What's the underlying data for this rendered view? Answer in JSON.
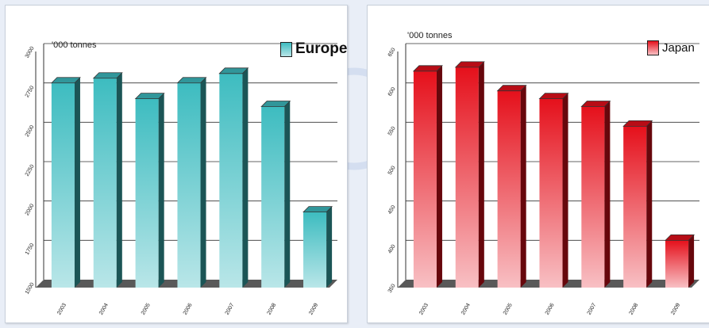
{
  "colors": {
    "background": "#e9eef7",
    "watermark": "#cdd9ee",
    "europe_bar_top": "#3dbcc0",
    "europe_bar_bottom": "#b9e6e8",
    "japan_bar_top": "#e5101b",
    "japan_bar_bottom": "#f8c0c4",
    "floor": "#595959"
  },
  "chart_data": [
    {
      "type": "bar",
      "unit_label": "'000 tonnes",
      "legend": "Europe",
      "categories": [
        "2003",
        "2004",
        "2005",
        "2006",
        "2007",
        "2008",
        "2009"
      ],
      "values": [
        2800,
        2830,
        2700,
        2800,
        2860,
        2650,
        1980
      ],
      "ylim": [
        1500,
        3000
      ],
      "y_ticks": [
        "1500",
        "1750",
        "2000",
        "2250",
        "2500",
        "2750",
        "3000"
      ],
      "grid": true
    },
    {
      "type": "bar",
      "unit_label": "'000 tonnes",
      "legend": "Japan",
      "categories": [
        "2003",
        "2004",
        "2005",
        "2006",
        "2007",
        "2008",
        "2009"
      ],
      "values": [
        625,
        630,
        600,
        590,
        580,
        555,
        410
      ],
      "ylim": [
        350,
        650
      ],
      "y_ticks": [
        "350",
        "400",
        "450",
        "500",
        "550",
        "600",
        "650"
      ],
      "grid": true
    }
  ]
}
